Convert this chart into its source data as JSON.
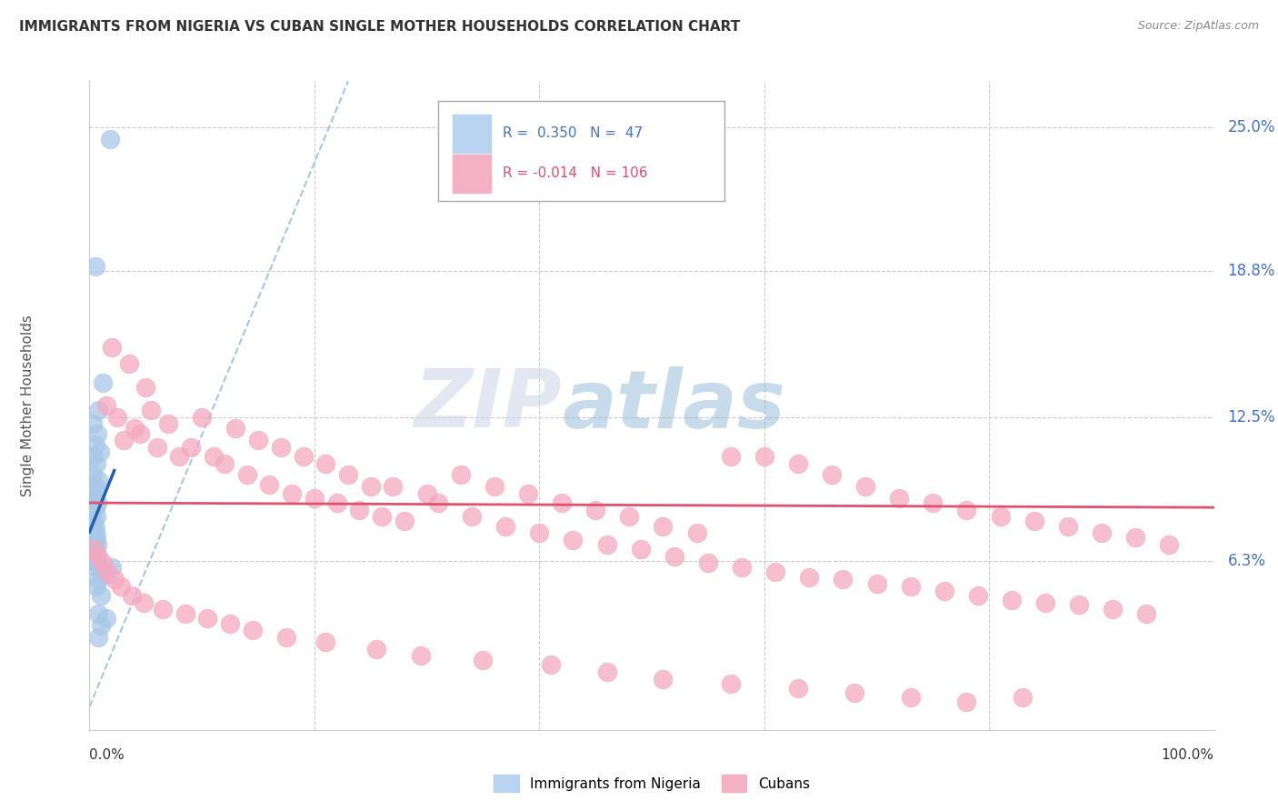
{
  "title": "IMMIGRANTS FROM NIGERIA VS CUBAN SINGLE MOTHER HOUSEHOLDS CORRELATION CHART",
  "source": "Source: ZipAtlas.com",
  "ylabel": "Single Mother Households",
  "ytick_labels": [
    "6.3%",
    "12.5%",
    "18.8%",
    "25.0%"
  ],
  "ytick_values": [
    0.063,
    0.125,
    0.188,
    0.25
  ],
  "xmin": 0.0,
  "xmax": 1.0,
  "ymin": -0.01,
  "ymax": 0.27,
  "legend_label1": "Immigrants from Nigeria",
  "legend_label2": "Cubans",
  "blue_color": "#a8c8e8",
  "pink_color": "#f4a8c0",
  "blue_line_color": "#2060b0",
  "pink_line_color": "#e05070",
  "blue_r": 0.35,
  "blue_n": 47,
  "pink_r": -0.014,
  "pink_n": 106,
  "blue_scatter_x": [
    0.018,
    0.005,
    0.012,
    0.008,
    0.003,
    0.007,
    0.005,
    0.009,
    0.004,
    0.006,
    0.003,
    0.008,
    0.005,
    0.006,
    0.004,
    0.007,
    0.005,
    0.003,
    0.006,
    0.004,
    0.003,
    0.005,
    0.004,
    0.006,
    0.003,
    0.005,
    0.004,
    0.007,
    0.003,
    0.005,
    0.004,
    0.006,
    0.003,
    0.005,
    0.004,
    0.006,
    0.003,
    0.02,
    0.01,
    0.015,
    0.008,
    0.006,
    0.01,
    0.008,
    0.015,
    0.01,
    0.008
  ],
  "blue_scatter_y": [
    0.245,
    0.19,
    0.14,
    0.128,
    0.122,
    0.118,
    0.113,
    0.11,
    0.108,
    0.105,
    0.1,
    0.098,
    0.095,
    0.093,
    0.09,
    0.088,
    0.086,
    0.084,
    0.082,
    0.08,
    0.078,
    0.077,
    0.075,
    0.074,
    0.073,
    0.072,
    0.071,
    0.07,
    0.069,
    0.068,
    0.067,
    0.066,
    0.065,
    0.064,
    0.063,
    0.062,
    0.061,
    0.06,
    0.058,
    0.057,
    0.055,
    0.052,
    0.048,
    0.04,
    0.038,
    0.035,
    0.03
  ],
  "pink_scatter_x": [
    0.02,
    0.035,
    0.05,
    0.015,
    0.025,
    0.04,
    0.03,
    0.055,
    0.07,
    0.045,
    0.06,
    0.08,
    0.1,
    0.09,
    0.11,
    0.13,
    0.12,
    0.15,
    0.14,
    0.17,
    0.16,
    0.19,
    0.18,
    0.21,
    0.2,
    0.23,
    0.22,
    0.25,
    0.24,
    0.27,
    0.26,
    0.3,
    0.28,
    0.33,
    0.31,
    0.36,
    0.34,
    0.39,
    0.37,
    0.42,
    0.4,
    0.45,
    0.43,
    0.48,
    0.46,
    0.51,
    0.49,
    0.54,
    0.52,
    0.57,
    0.55,
    0.6,
    0.58,
    0.63,
    0.61,
    0.66,
    0.64,
    0.69,
    0.67,
    0.72,
    0.7,
    0.75,
    0.73,
    0.78,
    0.76,
    0.81,
    0.79,
    0.84,
    0.82,
    0.87,
    0.85,
    0.9,
    0.88,
    0.93,
    0.91,
    0.96,
    0.94,
    0.004,
    0.008,
    0.012,
    0.016,
    0.022,
    0.028,
    0.038,
    0.048,
    0.065,
    0.085,
    0.105,
    0.125,
    0.145,
    0.175,
    0.21,
    0.255,
    0.295,
    0.35,
    0.41,
    0.46,
    0.51,
    0.57,
    0.63,
    0.68,
    0.73,
    0.78,
    0.83
  ],
  "pink_scatter_y": [
    0.155,
    0.148,
    0.138,
    0.13,
    0.125,
    0.12,
    0.115,
    0.128,
    0.122,
    0.118,
    0.112,
    0.108,
    0.125,
    0.112,
    0.108,
    0.12,
    0.105,
    0.115,
    0.1,
    0.112,
    0.096,
    0.108,
    0.092,
    0.105,
    0.09,
    0.1,
    0.088,
    0.095,
    0.085,
    0.095,
    0.082,
    0.092,
    0.08,
    0.1,
    0.088,
    0.095,
    0.082,
    0.092,
    0.078,
    0.088,
    0.075,
    0.085,
    0.072,
    0.082,
    0.07,
    0.078,
    0.068,
    0.075,
    0.065,
    0.108,
    0.062,
    0.108,
    0.06,
    0.105,
    0.058,
    0.1,
    0.056,
    0.095,
    0.055,
    0.09,
    0.053,
    0.088,
    0.052,
    0.085,
    0.05,
    0.082,
    0.048,
    0.08,
    0.046,
    0.078,
    0.045,
    0.075,
    0.044,
    0.073,
    0.042,
    0.07,
    0.04,
    0.068,
    0.065,
    0.062,
    0.058,
    0.055,
    0.052,
    0.048,
    0.045,
    0.042,
    0.04,
    0.038,
    0.036,
    0.033,
    0.03,
    0.028,
    0.025,
    0.022,
    0.02,
    0.018,
    0.015,
    0.012,
    0.01,
    0.008,
    0.006,
    0.004,
    0.002,
    0.004
  ],
  "watermark_zip": "ZIP",
  "watermark_atlas": "atlas",
  "background_color": "#ffffff",
  "grid_color": "#cccccc"
}
